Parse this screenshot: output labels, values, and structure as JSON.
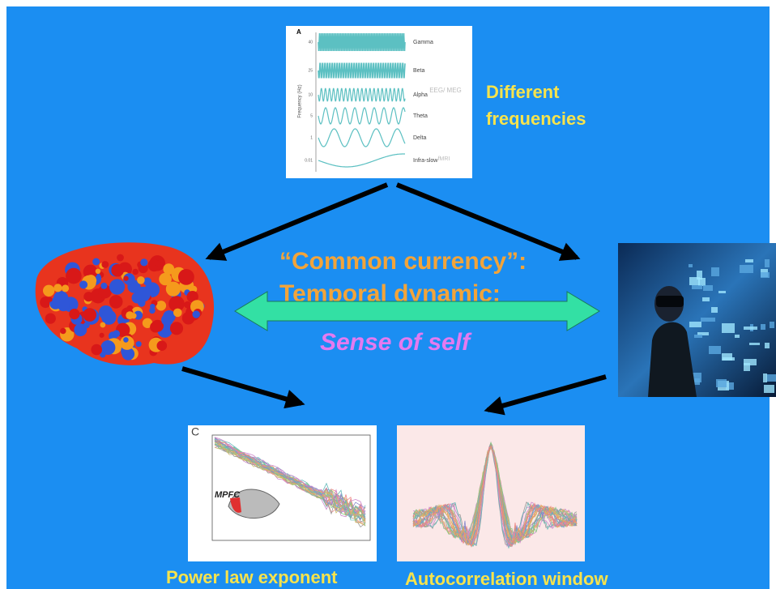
{
  "frequency_panel": {
    "panel_letter": "A",
    "axis_label": "Frequency (Hz)",
    "ticks": [
      "40",
      "25",
      "10",
      "5",
      "1",
      "0.01"
    ],
    "bands": [
      "Gamma",
      "Beta",
      "Alpha",
      "Theta",
      "Delta",
      "Infra-slow"
    ],
    "modalities": [
      "EEG/ MEG",
      "fMRI"
    ]
  },
  "frequency_caption": [
    "Different",
    "frequencies"
  ],
  "center": {
    "line1": "“Common currency”:",
    "line2": "Temporal dynamic:",
    "self": "Sense of self"
  },
  "power_panel": {
    "panel_letter": "C",
    "region": "MPFC"
  },
  "captions": {
    "left": "Power law exponent",
    "right": "Autocorrelation window"
  }
}
